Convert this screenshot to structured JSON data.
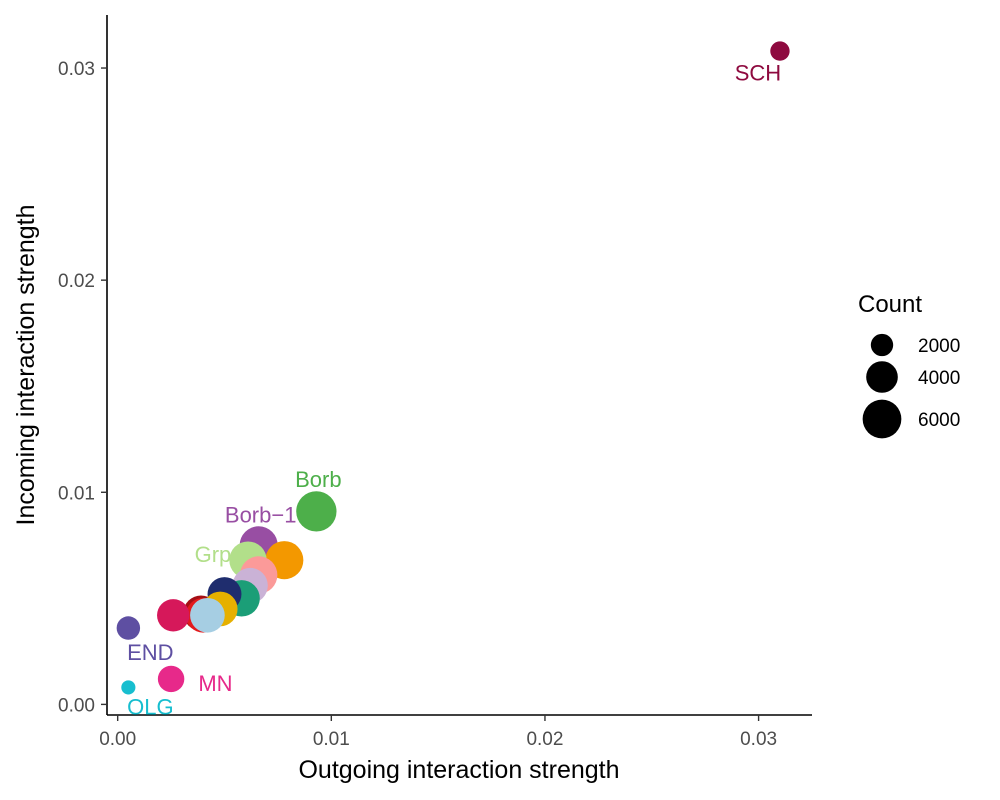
{
  "chart_data": {
    "type": "scatter",
    "xlabel": "Outgoing interaction strength",
    "ylabel": "Incoming interaction strength",
    "xlim": [
      -0.0005,
      0.0325
    ],
    "ylim": [
      -0.0005,
      0.0325
    ],
    "x_ticks": [
      0.0,
      0.01,
      0.02,
      0.03
    ],
    "x_tick_labels": [
      "0.00",
      "0.01",
      "0.02",
      "0.03"
    ],
    "y_ticks": [
      0.0,
      0.01,
      0.02,
      0.03
    ],
    "y_tick_labels": [
      "0.00",
      "0.01",
      "0.02",
      "0.03"
    ],
    "grid": false,
    "legend": {
      "title": "Count",
      "placement": "right",
      "entries": [
        {
          "label": "2000",
          "value": 2000
        },
        {
          "label": "4000",
          "value": 4000
        },
        {
          "label": "6000",
          "value": 6000
        }
      ]
    },
    "points": [
      {
        "name": "SCH",
        "label": "SCH",
        "x": 0.031,
        "y": 0.0308,
        "count": 1500,
        "color": "#8E0A3F",
        "label_pos": "below-left"
      },
      {
        "name": "Borb",
        "label": "Borb",
        "x": 0.0093,
        "y": 0.0091,
        "count": 6500,
        "color": "#4DAF4A",
        "label_pos": "above"
      },
      {
        "name": "Borb-1",
        "label": "Borb−1",
        "x": 0.0066,
        "y": 0.0075,
        "count": 5800,
        "color": "#984EA3",
        "label_pos": "above"
      },
      {
        "name": "orange",
        "label": "",
        "x": 0.0078,
        "y": 0.0068,
        "count": 5800,
        "color": "#F39800",
        "label_pos": "none"
      },
      {
        "name": "Grp",
        "label": "Grp",
        "x": 0.0061,
        "y": 0.0068,
        "count": 5600,
        "color": "#B2DF8A",
        "label_pos": "left"
      },
      {
        "name": "pink-salmon",
        "label": "",
        "x": 0.0066,
        "y": 0.0061,
        "count": 5600,
        "color": "#FB9A99",
        "label_pos": "none"
      },
      {
        "name": "lavender",
        "label": "",
        "x": 0.0062,
        "y": 0.0056,
        "count": 5000,
        "color": "#CAB2D6",
        "label_pos": "none"
      },
      {
        "name": "teal",
        "label": "",
        "x": 0.0058,
        "y": 0.005,
        "count": 5300,
        "color": "#1B9E77",
        "label_pos": "none"
      },
      {
        "name": "navy",
        "label": "",
        "x": 0.005,
        "y": 0.0052,
        "count": 4600,
        "color": "#1F2D6E",
        "label_pos": "none"
      },
      {
        "name": "dark-red",
        "label": "",
        "x": 0.0039,
        "y": 0.0043,
        "count": 5000,
        "color": "#A50F15",
        "label_pos": "none"
      },
      {
        "name": "red",
        "label": "",
        "x": 0.004,
        "y": 0.0042,
        "count": 4800,
        "color": "#E31A1C",
        "label_pos": "none"
      },
      {
        "name": "crimson",
        "label": "",
        "x": 0.0026,
        "y": 0.0042,
        "count": 4200,
        "color": "#D6185A",
        "label_pos": "none"
      },
      {
        "name": "yellow",
        "label": "",
        "x": 0.0048,
        "y": 0.0045,
        "count": 4800,
        "color": "#E6B000",
        "label_pos": "none"
      },
      {
        "name": "light-blue",
        "label": "",
        "x": 0.0042,
        "y": 0.0042,
        "count": 4800,
        "color": "#A6CEE3",
        "label_pos": "none"
      },
      {
        "name": "END",
        "label": "END",
        "x": 0.0005,
        "y": 0.0036,
        "count": 2200,
        "color": "#5E4FA2",
        "label_pos": "below-right"
      },
      {
        "name": "MN",
        "label": "MN",
        "x": 0.0025,
        "y": 0.0012,
        "count": 2800,
        "color": "#E7298A",
        "label_pos": "right"
      },
      {
        "name": "OLG",
        "label": "OLG",
        "x": 0.0005,
        "y": 0.0008,
        "count": 800,
        "color": "#17BECF",
        "label_pos": "below-right"
      }
    ]
  }
}
